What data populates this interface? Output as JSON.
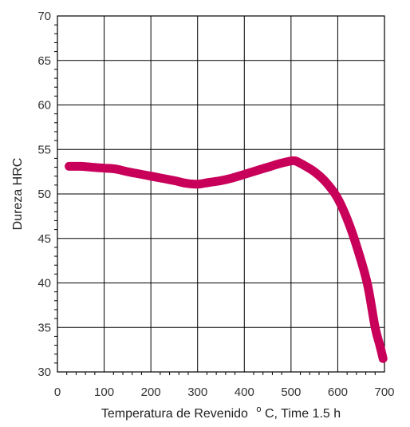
{
  "chart_data": {
    "type": "line",
    "title": "",
    "xlabel": "Temperatura de Revenido",
    "xlabel_unit_sup": "o",
    "xlabel_suffix": "C, Time 1.5 h",
    "ylabel": "Dureza HRC",
    "xlim": [
      0,
      700
    ],
    "ylim": [
      30,
      70
    ],
    "xticks": [
      0,
      100,
      200,
      300,
      400,
      500,
      600,
      700
    ],
    "yticks": [
      30,
      35,
      40,
      45,
      50,
      55,
      60,
      65,
      70
    ],
    "grid": true,
    "line_color": "#c8005a",
    "series": [
      {
        "x": [
          25,
          50,
          75,
          100,
          125,
          150,
          200,
          250,
          275,
          300,
          325,
          350,
          375,
          400,
          425,
          450,
          475,
          500,
          510,
          525,
          550,
          575,
          600,
          625,
          650,
          665,
          680,
          690,
          697
        ],
        "y": [
          53.1,
          53.1,
          53.0,
          52.9,
          52.8,
          52.5,
          52.0,
          51.5,
          51.2,
          51.1,
          51.3,
          51.5,
          51.8,
          52.2,
          52.6,
          53.0,
          53.4,
          53.7,
          53.7,
          53.3,
          52.5,
          51.3,
          49.5,
          46.5,
          42.5,
          39.5,
          35.0,
          33.0,
          31.5
        ]
      }
    ]
  }
}
